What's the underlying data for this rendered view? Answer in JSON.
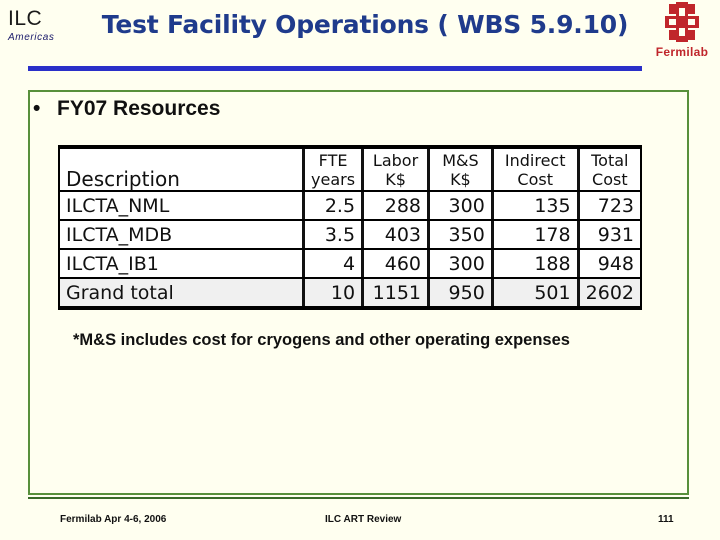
{
  "header": {
    "logo_left": {
      "ilc": "ILC",
      "americas": "Americas"
    },
    "title": "Test Facility Operations ( WBS 5.9.10)",
    "logo_right": {
      "name": "Fermilab",
      "color": "#c0262b"
    },
    "title_rule_color": "#2a2fc8"
  },
  "body": {
    "bullet": "FY07 Resources",
    "table": {
      "columns": [
        {
          "top": "",
          "bottom": "Description"
        },
        {
          "top": "FTE",
          "bottom": "years"
        },
        {
          "top": "Labor",
          "bottom": "K$"
        },
        {
          "top": "M&S",
          "bottom": "K$"
        },
        {
          "top": "Indirect",
          "bottom": "Cost"
        },
        {
          "top": "Total",
          "bottom": "Cost"
        }
      ],
      "rows": [
        [
          "ILCTA_NML",
          "2.5",
          "288",
          "300",
          "135",
          "723"
        ],
        [
          "ILCTA_MDB",
          "3.5",
          "403",
          "350",
          "178",
          "931"
        ],
        [
          "ILCTA_IB1",
          "4",
          "460",
          "300",
          "188",
          "948"
        ],
        [
          "Grand total",
          "10",
          "1151",
          "950",
          "501",
          "2602"
        ]
      ]
    },
    "footnote": "*M&S includes cost for cryogens and other operating expenses"
  },
  "footer": {
    "left": "Fermilab Apr 4-6, 2006",
    "center": "ILC ART Review",
    "page": "111"
  }
}
